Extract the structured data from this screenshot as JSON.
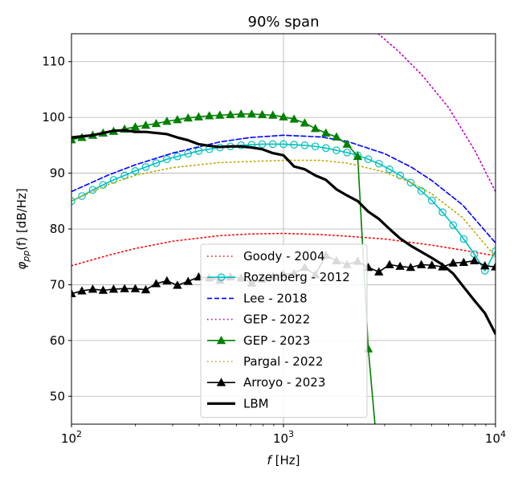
{
  "chart_data": {
    "type": "line",
    "title": "90% span",
    "xlabel_main": "f",
    "xlabel_unit": " [Hz]",
    "ylabel_sym": "φ",
    "ylabel_sub": "pp",
    "ylabel_rest": "(f) [dB/Hz]",
    "xscale": "log",
    "xlim": [
      100,
      10000
    ],
    "ylim": [
      45,
      115
    ],
    "xticks": [
      100,
      1000,
      10000
    ],
    "xtick_labels": [
      {
        "base": "10",
        "exp": "2"
      },
      {
        "base": "10",
        "exp": "3"
      },
      {
        "base": "10",
        "exp": "4"
      }
    ],
    "yticks": [
      50,
      60,
      70,
      80,
      90,
      100,
      110
    ],
    "ytick_labels": [
      "50",
      "60",
      "70",
      "80",
      "90",
      "100",
      "110"
    ],
    "grid": true,
    "legend_position": "lower-center",
    "series": [
      {
        "name": "Goody - 2004",
        "color": "#ff0000",
        "style": "dotted",
        "marker": "none",
        "x": [
          100,
          150,
          200,
          300,
          500,
          700,
          1000,
          1500,
          2000,
          3000,
          5000,
          7000,
          10000
        ],
        "y": [
          73.4,
          75.3,
          76.5,
          77.8,
          78.8,
          79.1,
          79.2,
          79.0,
          78.7,
          78.2,
          77.1,
          76.2,
          75.2
        ]
      },
      {
        "name": "Rozenberg - 2012",
        "color": "#00bfbf",
        "style": "solid",
        "marker": "circle",
        "x": [
          100,
          112,
          126,
          141,
          158,
          178,
          200,
          224,
          251,
          282,
          316,
          355,
          398,
          447,
          501,
          562,
          631,
          708,
          794,
          891,
          1000,
          1122,
          1259,
          1413,
          1585,
          1778,
          1995,
          2239,
          2512,
          2818,
          3162,
          3548,
          3981,
          4467,
          5012,
          5623,
          6310,
          7079,
          7943,
          8913,
          10000
        ],
        "y": [
          85.0,
          85.9,
          87.0,
          87.9,
          88.8,
          89.6,
          90.4,
          91.1,
          91.8,
          92.5,
          93.0,
          93.5,
          94.0,
          94.3,
          94.6,
          94.8,
          95.0,
          95.1,
          95.2,
          95.2,
          95.2,
          95.1,
          95.0,
          94.8,
          94.5,
          94.1,
          93.7,
          93.2,
          92.5,
          91.7,
          90.7,
          89.6,
          88.3,
          86.8,
          85.1,
          83.0,
          80.7,
          78.2,
          75.5,
          72.5,
          76.0
        ]
      },
      {
        "name": "Lee - 2018",
        "color": "#0000ff",
        "style": "dashed",
        "marker": "none",
        "x": [
          100,
          150,
          200,
          300,
          500,
          700,
          1000,
          1500,
          2000,
          3000,
          4000,
          5000,
          7000,
          10000
        ],
        "y": [
          86.7,
          89.7,
          91.5,
          93.6,
          95.6,
          96.4,
          96.8,
          96.5,
          95.7,
          93.5,
          91.1,
          88.7,
          84.3,
          77.5
        ]
      },
      {
        "name": "GEP - 2022",
        "color": "#bf00bf",
        "style": "dotted",
        "marker": "none",
        "x": [
          2800,
          3500,
          4500,
          6000,
          8000,
          10000
        ],
        "y": [
          115.0,
          111.8,
          107.6,
          101.8,
          94.0,
          86.7
        ]
      },
      {
        "name": "GEP - 2023",
        "color": "#008000",
        "style": "solid",
        "marker": "triangle",
        "x": [
          100,
          112,
          126,
          141,
          158,
          178,
          200,
          224,
          251,
          282,
          316,
          355,
          398,
          447,
          501,
          562,
          631,
          708,
          794,
          891,
          1000,
          1122,
          1259,
          1413,
          1585,
          1778,
          1995,
          2239,
          2512,
          2700
        ],
        "y": [
          96.0,
          96.4,
          96.8,
          97.2,
          97.5,
          97.9,
          98.3,
          98.6,
          98.9,
          99.3,
          99.6,
          99.9,
          100.1,
          100.3,
          100.4,
          100.5,
          100.6,
          100.6,
          100.5,
          100.4,
          100.1,
          99.7,
          99.0,
          98.0,
          97.2,
          96.5,
          95.2,
          93.0,
          58.5,
          45.0
        ]
      },
      {
        "name": "Pargal - 2022",
        "color": "#bfaa00",
        "style": "dotted",
        "marker": "none",
        "x": [
          100,
          150,
          200,
          300,
          500,
          700,
          1000,
          1500,
          2000,
          3000,
          4000,
          5000,
          7000,
          10000
        ],
        "y": [
          85.0,
          88.0,
          89.6,
          91.0,
          91.9,
          92.1,
          92.3,
          92.3,
          91.8,
          90.2,
          88.3,
          86.3,
          82.0,
          75.0
        ]
      },
      {
        "name": "Arroyo - 2023",
        "color": "#000000",
        "style": "solid",
        "marker": "triangle",
        "x": [
          100,
          112,
          126,
          141,
          158,
          178,
          200,
          224,
          251,
          282,
          316,
          355,
          398,
          447,
          501,
          562,
          631,
          708,
          794,
          891,
          1000,
          1122,
          1259,
          1413,
          1585,
          1778,
          1995,
          2239,
          2512,
          2818,
          3162,
          3548,
          3981,
          4467,
          5012,
          5623,
          6310,
          7079,
          7943,
          8913,
          10000
        ],
        "y": [
          68.4,
          68.9,
          69.2,
          69.0,
          69.2,
          69.3,
          69.3,
          69.1,
          70.2,
          70.7,
          69.9,
          70.6,
          71.4,
          71.2,
          70.8,
          71.4,
          71.2,
          70.3,
          71.0,
          71.5,
          71.9,
          72.0,
          73.1,
          71.8,
          75.3,
          74.3,
          73.6,
          74.2,
          73.1,
          72.3,
          73.6,
          73.3,
          73.1,
          73.6,
          73.5,
          73.2,
          73.9,
          74.0,
          74.3,
          73.4,
          73.2
        ]
      },
      {
        "name": "LBM",
        "color": "#000000",
        "style": "solid-thick",
        "marker": "none",
        "x": [
          100,
          112,
          126,
          141,
          158,
          178,
          200,
          224,
          251,
          282,
          316,
          355,
          398,
          447,
          501,
          562,
          631,
          708,
          794,
          891,
          1000,
          1122,
          1259,
          1413,
          1585,
          1778,
          1995,
          2239,
          2512,
          2818,
          3162,
          3548,
          3981,
          4467,
          5012,
          5623,
          6310,
          7079,
          7943,
          8913,
          10000
        ],
        "y": [
          96.4,
          96.6,
          96.8,
          97.2,
          97.6,
          97.7,
          97.4,
          97.4,
          97.2,
          97.0,
          96.4,
          95.9,
          95.2,
          94.9,
          94.7,
          94.8,
          94.8,
          94.6,
          94.3,
          93.6,
          93.2,
          91.2,
          90.7,
          89.6,
          88.8,
          87.1,
          86.0,
          85.0,
          83.1,
          81.8,
          80.0,
          78.3,
          77.0,
          75.9,
          74.8,
          73.6,
          72.0,
          69.6,
          67.2,
          64.9,
          61.2
        ]
      }
    ]
  }
}
